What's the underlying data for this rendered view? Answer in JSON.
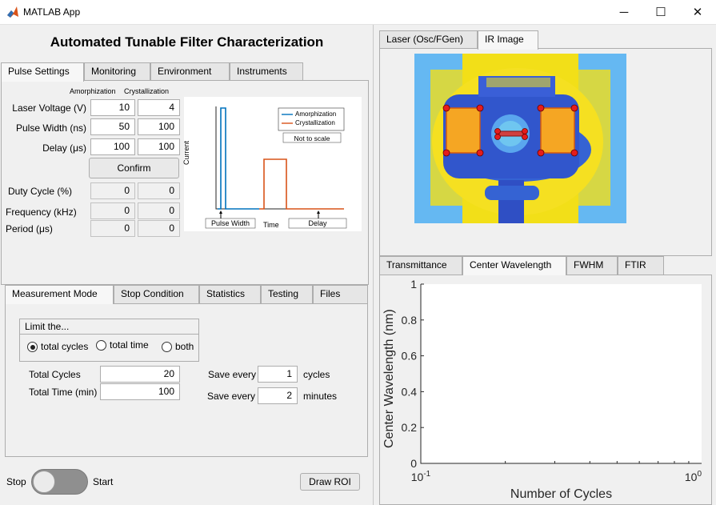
{
  "window": {
    "title": "MATLAB App",
    "minimize": "─",
    "maximize": "☐",
    "close": "✕"
  },
  "app": {
    "title": "Automated Tunable Filter Characterization"
  },
  "top_tabs": [
    "Pulse Settings",
    "Monitoring",
    "Environment",
    "Instruments"
  ],
  "pulse": {
    "col_amorph": "Amorphization",
    "col_cryst": "Crystallization",
    "rows": [
      {
        "label": "Laser Voltage (V)",
        "a": "10",
        "c": "4"
      },
      {
        "label": "Pulse Width (ns)",
        "a": "50",
        "c": "100"
      },
      {
        "label": "Delay (μs)",
        "a": "100",
        "c": "100"
      }
    ],
    "confirm": "Confirm",
    "derived": [
      {
        "label": "Duty Cycle (%)",
        "a": "0",
        "c": "0"
      },
      {
        "label": "Frequency (kHz)",
        "a": "0",
        "c": "0"
      },
      {
        "label": "Period (μs)",
        "a": "0",
        "c": "0"
      }
    ]
  },
  "schematic": {
    "legend": [
      "Amorphization",
      "Crystallization"
    ],
    "note": "Not to scale",
    "ylabel": "Current",
    "xlabel": "Time",
    "pulse_width": "Pulse Width",
    "delay": "Delay",
    "colors": {
      "amorph": "#0072bd",
      "cryst": "#d95319"
    }
  },
  "bottom_tabs": [
    "Measurement Mode",
    "Stop Condition",
    "Statistics",
    "Testing",
    "Files"
  ],
  "measure": {
    "limit_title": "Limit the...",
    "radios": [
      {
        "label": "total cycles",
        "on": true
      },
      {
        "label": "total time",
        "on": false
      },
      {
        "label": "both",
        "on": false
      }
    ],
    "total_cycles_label": "Total Cycles",
    "total_cycles": "20",
    "total_time_label": "Total Time (min)",
    "total_time": "100",
    "save_every": "Save every",
    "save_cycles": "1",
    "cycles": "cycles",
    "save_minutes": "2",
    "minutes": "minutes"
  },
  "controls": {
    "stop": "Stop",
    "start": "Start",
    "draw_roi": "Draw ROI"
  },
  "right_top_tabs": [
    "Laser (Osc/FGen)",
    "IR Image"
  ],
  "right_bottom_tabs": [
    "Transmittance",
    "Center Wavelength",
    "FWHM",
    "FTIR"
  ],
  "chart_data": {
    "type": "line",
    "series": [],
    "xlabel": "Number of Cycles",
    "ylabel": "Center Wavelength (nm)",
    "xscale": "log",
    "xlim": [
      0.1,
      1
    ],
    "ylim": [
      0,
      1
    ],
    "yticks": [
      "0",
      "0.2",
      "0.4",
      "0.6",
      "0.8",
      "1"
    ],
    "xticks_base": [
      "10",
      "10"
    ],
    "xticks_exp": [
      "-1",
      "0"
    ],
    "grid": false
  }
}
